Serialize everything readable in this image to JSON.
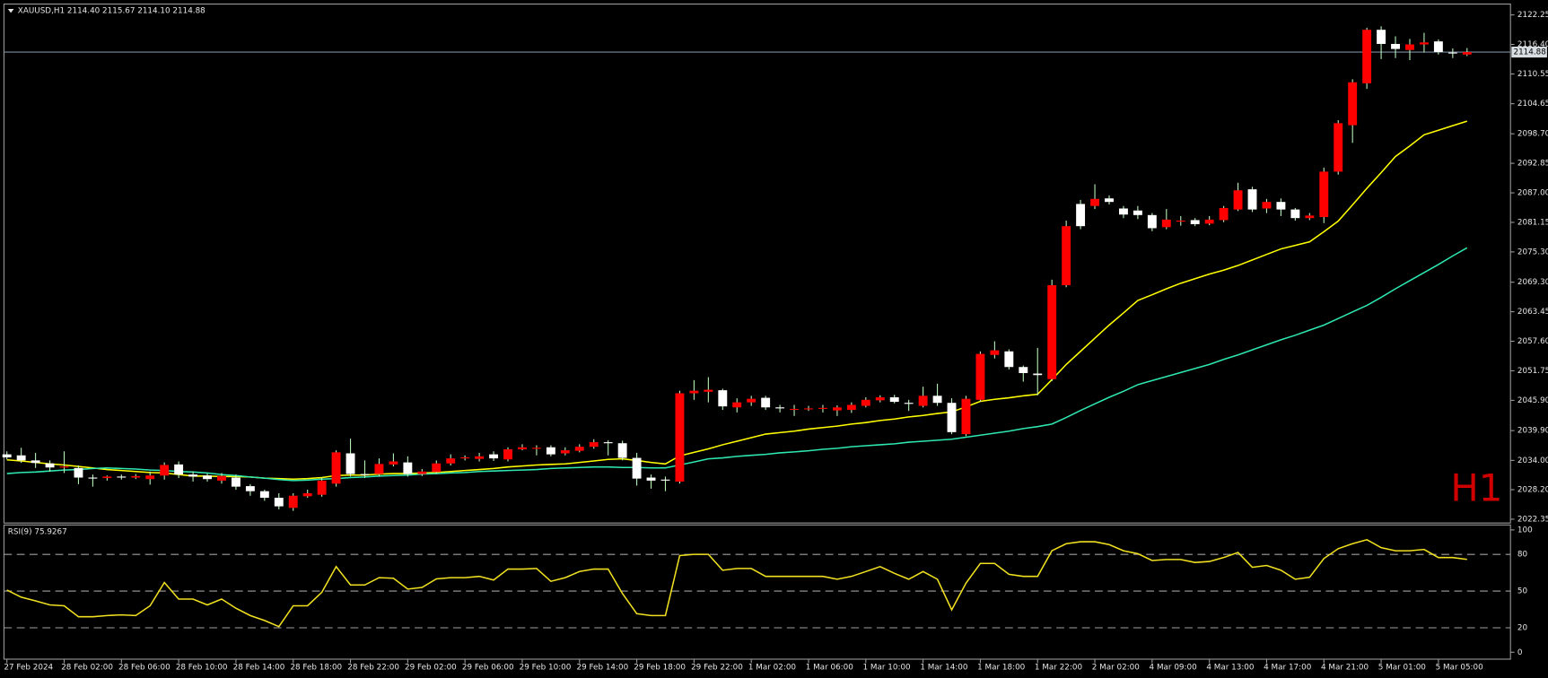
{
  "chart_data": [
    {
      "type": "candlestick",
      "info": "XAUUSD,H1  2114.40 2115.67 2114.10 2114.88",
      "watermark": "H1",
      "categories": [
        "27 Feb 2024",
        null,
        null,
        null,
        "28 Feb 02:00",
        null,
        null,
        null,
        "28 Feb 06:00",
        null,
        null,
        null,
        "28 Feb 10:00",
        null,
        null,
        null,
        "28 Feb 14:00",
        null,
        null,
        null,
        "28 Feb 18:00",
        null,
        null,
        null,
        "28 Feb 22:00",
        null,
        null,
        null,
        "29 Feb 02:00",
        null,
        null,
        null,
        "29 Feb 06:00",
        null,
        null,
        null,
        "29 Feb 10:00",
        null,
        null,
        null,
        "29 Feb 14:00",
        null,
        null,
        null,
        "29 Feb 18:00",
        null,
        null,
        null,
        "29 Feb 22:00",
        null,
        null,
        null,
        "1 Mar 02:00",
        null,
        null,
        null,
        "1 Mar 06:00",
        null,
        null,
        null,
        "1 Mar 10:00",
        null,
        null,
        null,
        "1 Mar 14:00",
        null,
        null,
        null,
        "1 Mar 18:00",
        null,
        null,
        null,
        "1 Mar 22:00",
        null,
        null,
        null,
        "2 Mar 02:00",
        null,
        null,
        null,
        "4 Mar 09:00",
        null,
        null,
        null,
        "4 Mar 13:00",
        null,
        null,
        null,
        "4 Mar 17:00",
        null,
        null,
        null,
        "4 Mar 21:00",
        null,
        null,
        null,
        "5 Mar 01:00",
        null,
        null,
        null,
        "5 Mar 05:00",
        null,
        null
      ],
      "open": [
        2035.2,
        2035.0,
        2034.0,
        2033.4,
        2032.6,
        2032.5,
        2030.6,
        2030.5,
        2030.8,
        2030.6,
        2030.3,
        2031.0,
        2033.2,
        2031.2,
        2031.0,
        2030.0,
        2030.6,
        2028.9,
        2027.9,
        2026.6,
        2024.6,
        2026.9,
        2027.2,
        2029.4,
        2035.4,
        2031.3,
        2031.3,
        2033.2,
        2033.6,
        2031.3,
        2031.7,
        2033.4,
        2034.4,
        2034.3,
        2035.2,
        2034.2,
        2036.2,
        2036.4,
        2036.6,
        2035.4,
        2035.9,
        2036.7,
        2037.6,
        2037.4,
        2034.5,
        2030.6,
        2030.2,
        2029.8,
        2047.3,
        2047.6,
        2047.9,
        2044.5,
        2045.5,
        2046.4,
        2044.5,
        2044.2,
        2044.2,
        2044.2,
        2043.9,
        2044.0,
        2044.8,
        2045.9,
        2046.5,
        2045.4,
        2044.8,
        2046.8,
        2045.4,
        2039.2,
        2046.0,
        2054.9,
        2055.6,
        2052.5,
        2051.2,
        2050.1,
        2068.7,
        2084.8,
        2084.4,
        2085.9,
        2083.9,
        2083.5,
        2082.6,
        2080.2,
        2081.3,
        2081.6,
        2080.9,
        2081.6,
        2083.7,
        2087.7,
        2083.9,
        2085.2,
        2083.7,
        2082.0,
        2082.2,
        2091.2,
        2100.4,
        2108.7,
        2119.3,
        2116.5,
        2115.3,
        2116.4,
        2117.0,
        2114.8,
        2114.4
      ],
      "high": [
        2035.8,
        2036.5,
        2035.5,
        2034.0,
        2035.8,
        2033.0,
        2031.2,
        2031.0,
        2031.2,
        2031.3,
        2031.8,
        2033.6,
        2033.8,
        2031.8,
        2031.4,
        2031.5,
        2031.2,
        2029.3,
        2028.2,
        2027.5,
        2027.5,
        2028.2,
        2030.6,
        2036.0,
        2038.3,
        2034.0,
        2034.4,
        2035.4,
        2034.8,
        2032.3,
        2034.0,
        2035.2,
        2035.0,
        2035.5,
        2035.8,
        2036.6,
        2037.2,
        2037.0,
        2037.0,
        2036.6,
        2037.2,
        2038.2,
        2038.0,
        2037.9,
        2035.5,
        2031.2,
        2030.8,
        2047.8,
        2049.9,
        2050.5,
        2048.2,
        2046.3,
        2046.8,
        2046.8,
        2045.0,
        2045.0,
        2044.8,
        2045.0,
        2044.9,
        2045.5,
        2046.5,
        2046.9,
        2047.0,
        2046.0,
        2048.6,
        2049.2,
        2046.3,
        2046.8,
        2055.6,
        2057.6,
        2056.0,
        2052.8,
        2056.3,
        2069.8,
        2081.5,
        2085.6,
        2088.7,
        2086.5,
        2084.4,
        2084.4,
        2083.0,
        2083.8,
        2082.4,
        2082.0,
        2082.4,
        2084.4,
        2089.0,
        2088.2,
        2085.8,
        2085.9,
        2084.0,
        2083.0,
        2092.0,
        2101.4,
        2109.5,
        2119.7,
        2120.0,
        2118.0,
        2117.5,
        2118.7,
        2117.4,
        2115.6,
        2115.67
      ],
      "low": [
        2034.2,
        2033.5,
        2032.5,
        2031.8,
        2031.5,
        2029.3,
        2028.8,
        2030.0,
        2030.2,
        2030.3,
        2029.2,
        2030.2,
        2030.5,
        2029.8,
        2029.8,
        2029.4,
        2028.2,
        2027.0,
        2026.0,
        2024.3,
        2024.0,
        2026.6,
        2026.8,
        2028.8,
        2030.8,
        2030.5,
        2030.8,
        2032.8,
        2030.8,
        2030.9,
        2031.3,
        2033.0,
        2034.0,
        2033.8,
        2033.9,
        2033.8,
        2036.0,
        2035.0,
        2034.8,
        2035.0,
        2035.6,
        2036.3,
        2035.0,
        2034.0,
        2029.0,
        2028.4,
        2027.9,
        2029.4,
        2046.0,
        2045.5,
        2044.0,
        2043.5,
        2044.8,
        2044.0,
        2043.5,
        2042.8,
        2043.8,
        2043.5,
        2042.8,
        2043.4,
        2044.5,
        2045.5,
        2045.3,
        2043.8,
        2044.5,
        2044.8,
        2039.2,
        2038.8,
        2045.6,
        2054.2,
        2052.0,
        2049.6,
        2046.9,
        2049.7,
        2068.3,
        2079.8,
        2083.8,
        2084.7,
        2082.0,
        2081.8,
        2079.4,
        2079.8,
        2080.5,
        2080.4,
        2080.6,
        2081.2,
        2083.4,
        2083.2,
        2083.0,
        2082.4,
        2081.5,
        2081.6,
        2081.0,
        2090.6,
        2096.9,
        2107.6,
        2113.5,
        2113.7,
        2113.3,
        2114.8,
        2114.4,
        2113.7,
        2114.1
      ],
      "close": [
        2034.6,
        2034.0,
        2033.5,
        2032.6,
        2032.8,
        2030.6,
        2030.5,
        2030.8,
        2030.6,
        2030.9,
        2031.0,
        2033.1,
        2031.2,
        2030.8,
        2030.3,
        2030.9,
        2028.8,
        2027.9,
        2026.6,
        2024.9,
        2027.0,
        2027.5,
        2030.0,
        2035.6,
        2031.3,
        2031.1,
        2033.3,
        2033.8,
        2031.3,
        2031.8,
        2033.4,
        2034.4,
        2034.6,
        2034.8,
        2034.4,
        2036.2,
        2036.6,
        2036.5,
        2035.2,
        2036.0,
        2036.7,
        2037.6,
        2037.5,
        2034.5,
        2030.4,
        2030.0,
        2030.0,
        2047.3,
        2047.8,
        2048.0,
        2044.7,
        2045.5,
        2046.2,
        2044.5,
        2044.3,
        2044.2,
        2044.3,
        2044.4,
        2044.5,
        2045.0,
        2046.0,
        2046.5,
        2045.6,
        2045.2,
        2046.8,
        2045.4,
        2039.6,
        2046.2,
        2055.1,
        2055.8,
        2052.5,
        2051.3,
        2050.9,
        2068.7,
        2080.4,
        2080.4,
        2085.8,
        2085.2,
        2082.7,
        2082.6,
        2080.0,
        2081.7,
        2081.5,
        2080.8,
        2081.7,
        2084.0,
        2087.5,
        2083.7,
        2085.2,
        2083.7,
        2082.0,
        2082.5,
        2091.2,
        2100.8,
        2108.9,
        2119.3,
        2116.5,
        2115.5,
        2116.4,
        2116.8,
        2114.9,
        2114.7,
        2114.88
      ],
      "up_color": "#ff0000",
      "down_color": "#ffffff",
      "wick_color": "#b8f0b8",
      "lines": [
        {
          "color": "#ffff00",
          "values": [
            2034.1,
            2033.9,
            2033.6,
            2033.3,
            2033.1,
            2032.8,
            2032.5,
            2032.2,
            2032.0,
            2031.8,
            2031.6,
            2031.5,
            2031.2,
            2030.9,
            2030.9,
            2030.8,
            2030.8,
            2030.7,
            2030.5,
            2030.4,
            2030.3,
            2030.4,
            2030.6,
            2031.0,
            2031.1,
            2031.1,
            2031.3,
            2031.4,
            2031.4,
            2031.5,
            2031.6,
            2031.8,
            2032.0,
            2032.2,
            2032.4,
            2032.7,
            2032.9,
            2033.1,
            2033.2,
            2033.3,
            2033.6,
            2033.9,
            2034.2,
            2034.3,
            2034.0,
            2033.6,
            2033.3,
            2034.9,
            2035.6,
            2036.3,
            2037.1,
            2037.8,
            2038.5,
            2039.2,
            2039.5,
            2039.8,
            2040.2,
            2040.5,
            2040.8,
            2041.2,
            2041.5,
            2041.9,
            2042.2,
            2042.6,
            2042.9,
            2043.3,
            2043.6,
            2044.6,
            2045.7,
            2046.1,
            2046.4,
            2046.8,
            2047.1,
            2050.0,
            2053.0,
            2055.6,
            2058.2,
            2060.8,
            2063.2,
            2065.7,
            2066.8,
            2068.0,
            2069.1,
            2070.0,
            2070.9,
            2071.7,
            2072.6,
            2073.7,
            2074.8,
            2075.9,
            2076.6,
            2077.3,
            2079.3,
            2081.4,
            2084.6,
            2087.9,
            2091.0,
            2094.2,
            2096.3,
            2098.5,
            2099.4,
            2100.3,
            2101.2
          ]
        },
        {
          "color": "#2ee6b0",
          "values": [
            2031.4,
            2031.6,
            2031.7,
            2031.9,
            2032.1,
            2032.2,
            2032.4,
            2032.5,
            2032.4,
            2032.3,
            2032.1,
            2032.0,
            2031.8,
            2031.7,
            2031.5,
            2031.2,
            2031.0,
            2030.7,
            2030.5,
            2030.2,
            2030.0,
            2030.1,
            2030.3,
            2030.4,
            2030.6,
            2030.7,
            2030.9,
            2031.0,
            2031.1,
            2031.3,
            2031.4,
            2031.5,
            2031.6,
            2031.8,
            2031.9,
            2032.0,
            2032.1,
            2032.2,
            2032.4,
            2032.5,
            2032.6,
            2032.7,
            2032.7,
            2032.6,
            2032.6,
            2032.5,
            2032.5,
            2033.1,
            2033.7,
            2034.3,
            2034.5,
            2034.8,
            2035.0,
            2035.2,
            2035.5,
            2035.7,
            2035.9,
            2036.2,
            2036.4,
            2036.7,
            2036.9,
            2037.1,
            2037.3,
            2037.6,
            2037.8,
            2038.0,
            2038.2,
            2038.6,
            2039.0,
            2039.4,
            2039.8,
            2040.3,
            2040.7,
            2041.2,
            2042.5,
            2043.9,
            2045.2,
            2046.5,
            2047.7,
            2049.0,
            2049.8,
            2050.6,
            2051.4,
            2052.2,
            2053.0,
            2054.0,
            2054.9,
            2055.9,
            2056.9,
            2057.9,
            2058.8,
            2059.8,
            2060.8,
            2062.1,
            2063.4,
            2064.7,
            2066.3,
            2068.0,
            2069.6,
            2071.2,
            2072.8,
            2074.5,
            2076.1
          ]
        }
      ],
      "price_line": 2114.88,
      "price_line_color": "#7a8ca0",
      "ylim": [
        2021.6,
        2124.4
      ],
      "yticks": [
        2122.25,
        {
          "value": 2116.4,
          "label": "2116.40"
        },
        2110.55,
        2104.65,
        {
          "value": 2098.7,
          "label": "2098.70"
        },
        2092.85,
        {
          "value": 2087,
          "label": "2087.00"
        },
        2081.15,
        {
          "value": 2075.3,
          "label": "2075.30"
        },
        {
          "value": 2069.3,
          "label": "2069.30"
        },
        2063.45,
        {
          "value": 2057.6,
          "label": "2057.60"
        },
        2051.75,
        {
          "value": 2045.9,
          "label": "2045.90"
        },
        {
          "value": 2039.9,
          "label": "2039.90"
        },
        {
          "value": 2034,
          "label": "2034.00"
        },
        {
          "value": 2028.2,
          "label": "2028.20"
        },
        2022.35
      ]
    },
    {
      "type": "line",
      "title": "RSI(9) 75.9267",
      "color": "#f0e020",
      "values": [
        50.8,
        45,
        42,
        38.7,
        38,
        29,
        29,
        30,
        30.6,
        30,
        38,
        57,
        43.5,
        43.5,
        38.7,
        43.5,
        36,
        30,
        26,
        21,
        38,
        38,
        49,
        70,
        55,
        55,
        61,
        60.5,
        51.6,
        53,
        60,
        61,
        61,
        62,
        59,
        68,
        68,
        68.5,
        58,
        61,
        66,
        68,
        68,
        48,
        31.5,
        30,
        30,
        79,
        80,
        80,
        67,
        68.5,
        68.5,
        62,
        62,
        62,
        62,
        62,
        59.7,
        62,
        66,
        70,
        64.5,
        59.7,
        66,
        59.7,
        34.7,
        56.5,
        72.6,
        72.6,
        63.7,
        62,
        62,
        83,
        88.7,
        90.3,
        90.3,
        88,
        83,
        80.6,
        75,
        75.8,
        75.8,
        73.4,
        74.2,
        77.4,
        81.5,
        69.4,
        71,
        67,
        59.7,
        61.3,
        76.6,
        84.7,
        88.7,
        92,
        85.5,
        83,
        83,
        84,
        77.4,
        77.4,
        75.9267
      ],
      "ylim": [
        0,
        100
      ],
      "yticks": [
        100,
        80,
        50,
        20,
        0
      ]
    }
  ]
}
